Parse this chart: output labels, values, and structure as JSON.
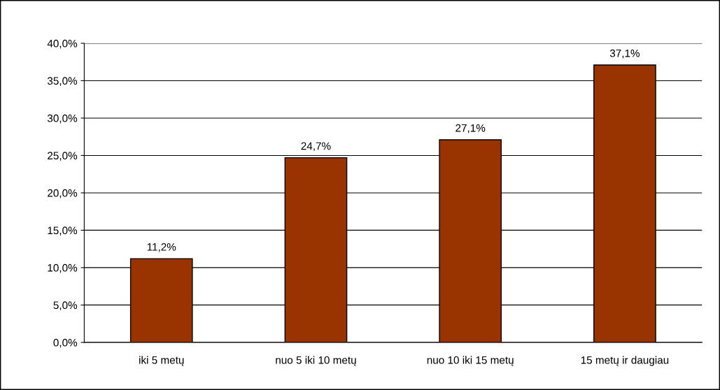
{
  "chart_data": {
    "type": "bar",
    "categories": [
      "iki 5 metų",
      "nuo 5 iki 10 metų",
      "nuo 10 iki 15 metų",
      "15 metų ir daugiau"
    ],
    "values": [
      11.2,
      24.7,
      27.1,
      37.1
    ],
    "value_labels": [
      "11,2%",
      "24,7%",
      "27,1%",
      "37,1%"
    ],
    "color": "#993300",
    "ylim": [
      0,
      40
    ],
    "yticks": [
      {
        "value": 0,
        "label": "0,0%"
      },
      {
        "value": 5,
        "label": "5,0%"
      },
      {
        "value": 10,
        "label": "10,0%"
      },
      {
        "value": 15,
        "label": "15,0%"
      },
      {
        "value": 20,
        "label": "20,0%"
      },
      {
        "value": 25,
        "label": "25,0%"
      },
      {
        "value": 30,
        "label": "30,0%"
      },
      {
        "value": 35,
        "label": "35,0%"
      },
      {
        "value": 40,
        "label": "40,0%"
      }
    ],
    "grid": "y",
    "legend": false
  }
}
